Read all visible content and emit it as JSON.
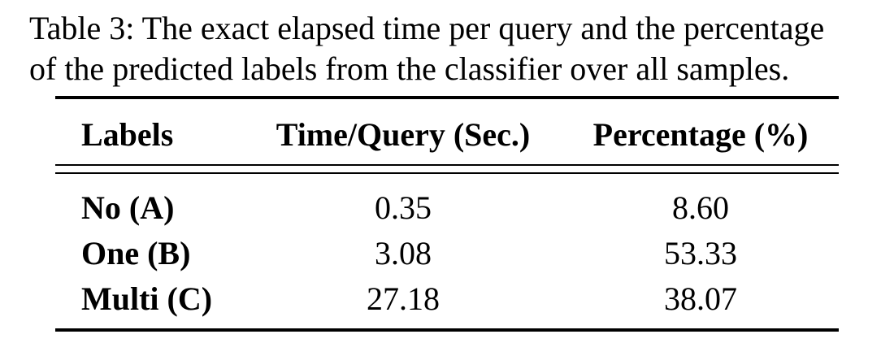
{
  "caption": {
    "line1": "Table 3: The exact elapsed time per query and the percentage",
    "line2": "of the predicted labels from the classifier over all samples."
  },
  "table": {
    "headers": [
      "Labels",
      "Time/Query (Sec.)",
      "Percentage (%)"
    ],
    "rows": [
      [
        "No (A)",
        "0.35",
        "8.60"
      ],
      [
        "One (B)",
        "3.08",
        "53.33"
      ],
      [
        "Multi (C)",
        "27.18",
        "38.07"
      ]
    ]
  }
}
